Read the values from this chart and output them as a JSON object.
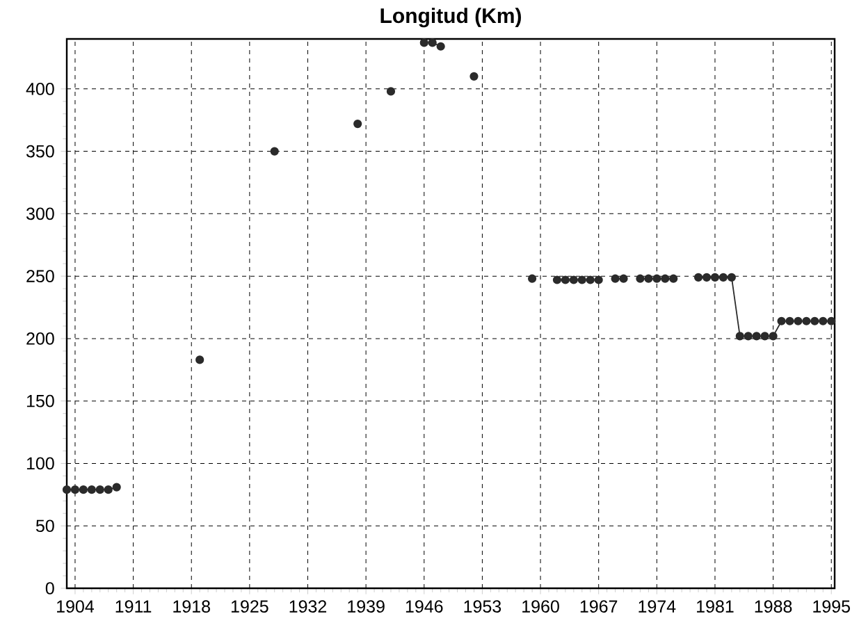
{
  "chart_data": {
    "type": "line",
    "title": "Longitud (Km)",
    "x": [
      1903,
      1904,
      1905,
      1906,
      1907,
      1908,
      1909,
      1910,
      1911,
      1912,
      1913,
      1914,
      1915,
      1916,
      1917,
      1918,
      1919,
      1920,
      1921,
      1922,
      1923,
      1924,
      1925,
      1926,
      1927,
      1928,
      1929,
      1930,
      1931,
      1932,
      1933,
      1934,
      1935,
      1936,
      1937,
      1938,
      1939,
      1940,
      1941,
      1942,
      1943,
      1944,
      1945,
      1946,
      1947,
      1948,
      1949,
      1950,
      1951,
      1952,
      1953,
      1954,
      1955,
      1956,
      1957,
      1958,
      1959,
      1960,
      1961,
      1962,
      1963,
      1964,
      1965,
      1966,
      1967,
      1968,
      1969,
      1970,
      1971,
      1972,
      1973,
      1974,
      1975,
      1976,
      1977,
      1978,
      1979,
      1980,
      1981,
      1982,
      1983,
      1984,
      1985,
      1986,
      1987,
      1988,
      1989,
      1990,
      1991,
      1992,
      1993,
      1994,
      1995
    ],
    "series": [
      {
        "color": "#2b2b2b",
        "values": [
          79,
          79,
          79,
          79,
          79,
          79,
          81,
          null,
          null,
          null,
          null,
          null,
          null,
          null,
          null,
          null,
          183,
          null,
          null,
          null,
          null,
          null,
          null,
          null,
          null,
          350,
          null,
          null,
          null,
          null,
          null,
          null,
          null,
          null,
          null,
          372,
          null,
          null,
          null,
          398,
          null,
          null,
          null,
          437,
          437,
          434,
          null,
          null,
          null,
          410,
          null,
          null,
          null,
          null,
          null,
          null,
          248,
          null,
          null,
          247,
          247,
          247,
          247,
          247,
          247,
          null,
          248,
          248,
          null,
          248,
          248,
          248,
          248,
          248,
          null,
          null,
          249,
          249,
          249,
          249,
          249,
          202,
          202,
          202,
          202,
          202,
          214,
          214,
          214,
          214,
          214,
          214,
          214
        ]
      }
    ],
    "xlim": [
      1903,
      1995.4
    ],
    "ylim": [
      0,
      440
    ],
    "xticks": [
      1904,
      1911,
      1918,
      1925,
      1932,
      1939,
      1946,
      1953,
      1960,
      1967,
      1974,
      1981,
      1988,
      1995
    ],
    "yticks": [
      0,
      50,
      100,
      150,
      200,
      250,
      300,
      350,
      400
    ],
    "grid": true,
    "marker": "circle",
    "line_style": "solid"
  }
}
